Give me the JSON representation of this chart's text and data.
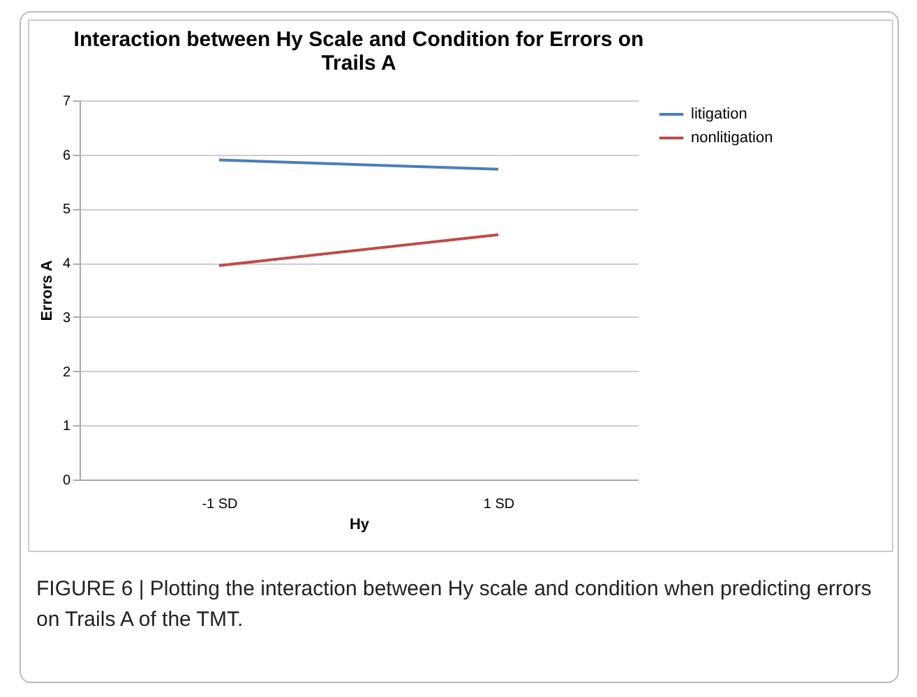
{
  "chart_data": {
    "type": "line",
    "title": "Interaction between Hy Scale and Condition for Errors on Trails A",
    "xlabel": "Hy",
    "ylabel": "Errors A",
    "categories": [
      "-1 SD",
      "1 SD"
    ],
    "series": [
      {
        "name": "litigation",
        "color": "#4a7ebb",
        "values": [
          5.9,
          5.73
        ]
      },
      {
        "name": "nonlitigation",
        "color": "#be4b48",
        "values": [
          3.95,
          4.52
        ]
      }
    ],
    "ylim": [
      0,
      7
    ],
    "yticks": [
      0,
      1,
      2,
      3,
      4,
      5,
      6,
      7
    ],
    "grid": "y",
    "legend": "right",
    "marker": "none",
    "line_style": "solid",
    "annotations": [
      "FIGURE 6 | Plotting the interaction between Hy scale and condition when predicting errors on Trails A of the TMT."
    ]
  }
}
